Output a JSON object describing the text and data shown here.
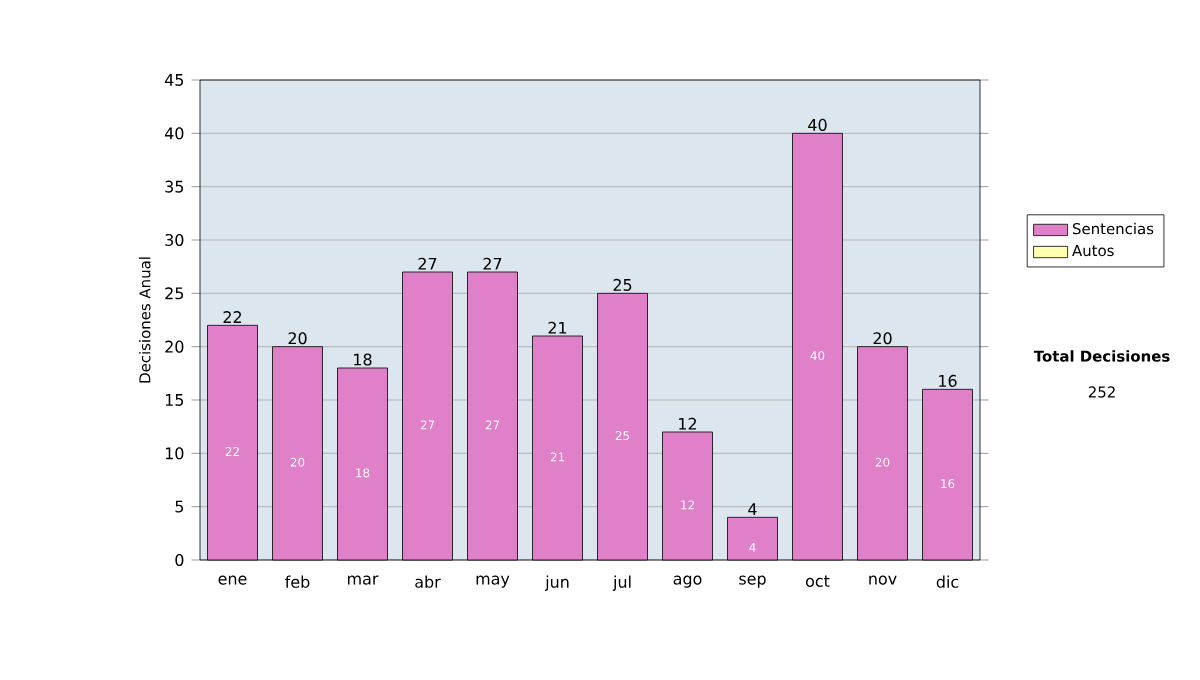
{
  "chart_data": {
    "type": "bar",
    "stacked": true,
    "ylabel": "Decisiones Anual",
    "categories": [
      "ene",
      "feb",
      "mar",
      "abr",
      "may",
      "jun",
      "jul",
      "ago",
      "sep",
      "oct",
      "nov",
      "dic"
    ],
    "series": [
      {
        "name": "Sentencias",
        "color": "#e080c8",
        "values": [
          22,
          20,
          18,
          27,
          27,
          21,
          25,
          12,
          4,
          40,
          20,
          16
        ]
      },
      {
        "name": "Autos",
        "color": "#ffffb0",
        "values": [
          null,
          null,
          null,
          null,
          null,
          null,
          null,
          null,
          null,
          null,
          null,
          null
        ]
      }
    ],
    "data_labels": true,
    "totals": [
      "22",
      "20",
      "18",
      "27",
      "27",
      "21",
      "25",
      "12",
      "4",
      "40",
      "20",
      "16"
    ],
    "ylim": [
      0,
      45
    ],
    "yticks": [
      0,
      5,
      10,
      15,
      20,
      25,
      30,
      35,
      40,
      45
    ],
    "grid": "y",
    "legend": "right",
    "annotations": [
      "Total Decisiones",
      "252"
    ]
  }
}
